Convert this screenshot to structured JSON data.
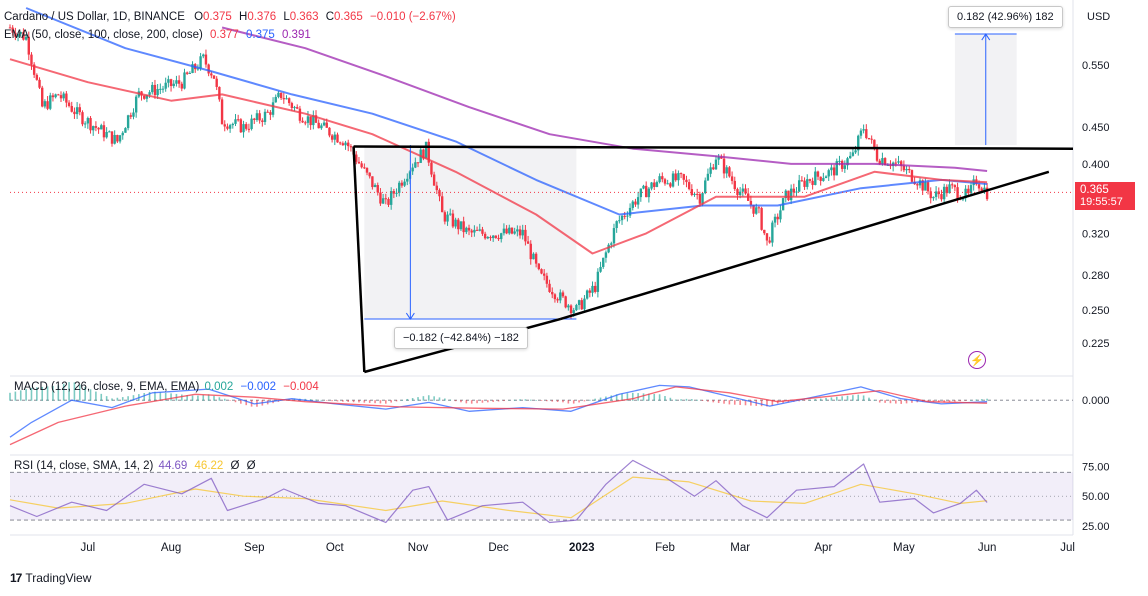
{
  "header": {
    "symbol": "Cardano / US Dollar, 1D, BINANCE",
    "o_label": "O",
    "o": "0.375",
    "h_label": "H",
    "h": "0.376",
    "l_label": "L",
    "l": "0.363",
    "c_label": "C",
    "c": "0.365",
    "change": "−0.010 (−2.67%)",
    "ema_label": "EMA (50, close, 100, close, 200, close)",
    "ema50": "0.377",
    "ema100": "0.375",
    "ema200": "0.391"
  },
  "currency": "USD",
  "last_price": {
    "value": "0.365",
    "countdown": "19:55:57"
  },
  "measure_up": "0.182 (42.96%) 182",
  "measure_down": "−0.182 (−42.84%) −182",
  "macd_panel": {
    "label": "MACD (12, 26, close, 9, EMA, EMA)",
    "hist": "0.002",
    "macd": "−0.002",
    "signal": "−0.004"
  },
  "rsi_panel": {
    "label": "RSI (14, close, SMA, 14, 2)",
    "rsi": "44.69",
    "sma": "46.22",
    "n1": "Ø",
    "n2": "Ø"
  },
  "brand": "TradingView",
  "colors": {
    "up": "#26a69a",
    "down": "#f23645",
    "ema50": "#f23645",
    "ema100": "#2962ff",
    "ema200": "#9c27b0",
    "rsi": "#7e57c2",
    "rsi_sma": "#f7c62f"
  },
  "chart_data": [
    {
      "type": "candlestick",
      "price_axis_ticks": [
        0.55,
        0.45,
        0.4,
        0.32,
        0.28,
        0.25,
        0.225
      ],
      "price_axis_labels": [
        "0.550",
        "0.450",
        "0.400",
        "0.320",
        "0.280",
        "0.250",
        "0.225"
      ],
      "scale": "log",
      "ylim": [
        0.205,
        0.66
      ],
      "x_ticks": [
        "Jul",
        "Aug",
        "Sep",
        "Oct",
        "Nov",
        "Dec",
        "2023",
        "Feb",
        "Mar",
        "Apr",
        "May",
        "Jun",
        "Jul"
      ],
      "x_tick_dates": [
        "2022-07-01",
        "2022-08-01",
        "2022-09-01",
        "2022-10-01",
        "2022-11-01",
        "2022-12-01",
        "2023-01-01",
        "2023-02-01",
        "2023-03-01",
        "2023-04-01",
        "2023-05-01",
        "2023-06-01",
        "2023-07-01"
      ],
      "xlim": [
        "2022-06-02",
        "2023-07-03"
      ],
      "close_path": [
        [
          "2022-06-02",
          0.62
        ],
        [
          "2022-06-08",
          0.6
        ],
        [
          "2022-06-14",
          0.48
        ],
        [
          "2022-06-20",
          0.5
        ],
        [
          "2022-06-27",
          0.47
        ],
        [
          "2022-07-04",
          0.45
        ],
        [
          "2022-07-12",
          0.43
        ],
        [
          "2022-07-20",
          0.5
        ],
        [
          "2022-07-28",
          0.51
        ],
        [
          "2022-08-05",
          0.52
        ],
        [
          "2022-08-13",
          0.56
        ],
        [
          "2022-08-17",
          0.53
        ],
        [
          "2022-08-20",
          0.46
        ],
        [
          "2022-08-28",
          0.45
        ],
        [
          "2022-09-06",
          0.47
        ],
        [
          "2022-09-11",
          0.5
        ],
        [
          "2022-09-18",
          0.47
        ],
        [
          "2022-09-26",
          0.45
        ],
        [
          "2022-10-05",
          0.43
        ],
        [
          "2022-10-12",
          0.39
        ],
        [
          "2022-10-20",
          0.35
        ],
        [
          "2022-10-30",
          0.4
        ],
        [
          "2022-11-04",
          0.42
        ],
        [
          "2022-11-10",
          0.34
        ],
        [
          "2022-11-20",
          0.32
        ],
        [
          "2022-11-30",
          0.32
        ],
        [
          "2022-12-10",
          0.32
        ],
        [
          "2022-12-16",
          0.28
        ],
        [
          "2022-12-24",
          0.26
        ],
        [
          "2022-12-30",
          0.25
        ],
        [
          "2023-01-06",
          0.27
        ],
        [
          "2023-01-14",
          0.33
        ],
        [
          "2023-01-22",
          0.36
        ],
        [
          "2023-01-30",
          0.38
        ],
        [
          "2023-02-07",
          0.38
        ],
        [
          "2023-02-14",
          0.36
        ],
        [
          "2023-02-20",
          0.41
        ],
        [
          "2023-02-28",
          0.37
        ],
        [
          "2023-03-08",
          0.34
        ],
        [
          "2023-03-11",
          0.31
        ],
        [
          "2023-03-18",
          0.36
        ],
        [
          "2023-03-26",
          0.38
        ],
        [
          "2023-04-04",
          0.39
        ],
        [
          "2023-04-12",
          0.41
        ],
        [
          "2023-04-16",
          0.45
        ],
        [
          "2023-04-21",
          0.41
        ],
        [
          "2023-04-28",
          0.4
        ],
        [
          "2023-05-06",
          0.38
        ],
        [
          "2023-05-12",
          0.36
        ],
        [
          "2023-05-18",
          0.37
        ],
        [
          "2023-05-25",
          0.36
        ],
        [
          "2023-05-28",
          0.38
        ],
        [
          "2023-06-01",
          0.365
        ]
      ],
      "ema50_path": [
        [
          "2022-06-02",
          0.56
        ],
        [
          "2022-07-01",
          0.52
        ],
        [
          "2022-08-01",
          0.49
        ],
        [
          "2022-08-20",
          0.5
        ],
        [
          "2022-09-20",
          0.47
        ],
        [
          "2022-10-15",
          0.44
        ],
        [
          "2022-11-15",
          0.39
        ],
        [
          "2022-12-15",
          0.34
        ],
        [
          "2023-01-05",
          0.3
        ],
        [
          "2023-01-25",
          0.32
        ],
        [
          "2023-02-20",
          0.36
        ],
        [
          "2023-03-25",
          0.36
        ],
        [
          "2023-04-20",
          0.39
        ],
        [
          "2023-05-15",
          0.38
        ],
        [
          "2023-06-01",
          0.377
        ]
      ],
      "ema100_path": [
        [
          "2022-06-08",
          0.66
        ],
        [
          "2022-07-15",
          0.58
        ],
        [
          "2022-08-15",
          0.54
        ],
        [
          "2022-09-15",
          0.5
        ],
        [
          "2022-10-15",
          0.47
        ],
        [
          "2022-11-15",
          0.43
        ],
        [
          "2022-12-15",
          0.38
        ],
        [
          "2023-01-15",
          0.34
        ],
        [
          "2023-02-15",
          0.35
        ],
        [
          "2023-03-15",
          0.35
        ],
        [
          "2023-04-15",
          0.37
        ],
        [
          "2023-05-15",
          0.38
        ],
        [
          "2023-06-01",
          0.375
        ]
      ],
      "ema200_path": [
        [
          "2022-08-20",
          0.62
        ],
        [
          "2022-09-20",
          0.58
        ],
        [
          "2022-10-20",
          0.53
        ],
        [
          "2022-11-20",
          0.48
        ],
        [
          "2022-12-20",
          0.44
        ],
        [
          "2023-01-20",
          0.42
        ],
        [
          "2023-02-20",
          0.41
        ],
        [
          "2023-03-20",
          0.4
        ],
        [
          "2023-04-20",
          0.4
        ],
        [
          "2023-05-20",
          0.395
        ],
        [
          "2023-06-01",
          0.391
        ]
      ],
      "last_price": 0.365,
      "annotations": {
        "resistance_line": [
          [
            "2022-10-08",
            0.423
          ],
          [
            "2023-07-03",
            0.42
          ]
        ],
        "support_line": [
          [
            "2022-12-24",
            0.243
          ],
          [
            "2023-06-24",
            0.39
          ]
        ],
        "triangle_left_edge": [
          [
            "2022-10-08",
            0.423
          ],
          [
            "2022-10-12",
            0.205
          ]
        ],
        "triangle_base": [
          [
            "2022-10-12",
            0.205
          ],
          [
            "2022-12-24",
            0.243
          ]
        ],
        "measure_down": {
          "from": [
            "2022-10-12",
            0.425
          ],
          "to": [
            "2022-12-30",
            0.243
          ],
          "label": "−0.182 (−42.84%) −182"
        },
        "measure_up": {
          "from": [
            "2023-05-20",
            0.425
          ],
          "to": [
            "2023-06-12",
            0.607
          ],
          "label": "0.182 (42.96%) 182"
        }
      }
    },
    {
      "type": "line",
      "name": "MACD (12, 26, close, 9, EMA, EMA)",
      "ylabel_ticks": [
        "0.000"
      ],
      "series": [
        {
          "name": "MACD",
          "values": [
            [
              "2022-06-02",
              -0.05
            ],
            [
              "2022-06-10",
              -0.03
            ],
            [
              "2022-06-25",
              0.0
            ],
            [
              "2022-07-10",
              -0.01
            ],
            [
              "2022-07-25",
              0.01
            ],
            [
              "2022-08-15",
              0.015
            ],
            [
              "2022-09-01",
              -0.005
            ],
            [
              "2022-09-15",
              0.002
            ],
            [
              "2022-10-01",
              -0.005
            ],
            [
              "2022-10-20",
              -0.012
            ],
            [
              "2022-11-05",
              -0.003
            ],
            [
              "2022-11-20",
              -0.015
            ],
            [
              "2022-12-10",
              -0.01
            ],
            [
              "2022-12-28",
              -0.015
            ],
            [
              "2023-01-15",
              0.008
            ],
            [
              "2023-01-30",
              0.02
            ],
            [
              "2023-02-10",
              0.018
            ],
            [
              "2023-02-25",
              0.005
            ],
            [
              "2023-03-12",
              -0.008
            ],
            [
              "2023-03-28",
              0.004
            ],
            [
              "2023-04-15",
              0.018
            ],
            [
              "2023-04-30",
              0.002
            ],
            [
              "2023-05-15",
              -0.005
            ],
            [
              "2023-06-01",
              -0.002
            ]
          ]
        },
        {
          "name": "Signal",
          "values": [
            [
              "2022-06-02",
              -0.06
            ],
            [
              "2022-06-20",
              -0.03
            ],
            [
              "2022-07-15",
              -0.008
            ],
            [
              "2022-08-10",
              0.008
            ],
            [
              "2022-09-01",
              0.004
            ],
            [
              "2022-09-20",
              -0.002
            ],
            [
              "2022-10-25",
              -0.009
            ],
            [
              "2022-11-25",
              -0.011
            ],
            [
              "2022-12-25",
              -0.012
            ],
            [
              "2023-01-20",
              0.002
            ],
            [
              "2023-02-05",
              0.018
            ],
            [
              "2023-02-25",
              0.01
            ],
            [
              "2023-03-15",
              -0.002
            ],
            [
              "2023-04-05",
              0.006
            ],
            [
              "2023-04-22",
              0.013
            ],
            [
              "2023-05-10",
              -0.002
            ],
            [
              "2023-06-01",
              -0.004
            ]
          ]
        }
      ]
    },
    {
      "type": "line",
      "name": "RSI (14, close, SMA, 14, 2)",
      "ylim": [
        20,
        82
      ],
      "y_ticks": [
        75,
        50,
        25
      ],
      "y_tick_labels": [
        "75.00",
        "50.00",
        "25.00"
      ],
      "bands": [
        30,
        70
      ],
      "series": [
        {
          "name": "RSI",
          "values": [
            [
              "2022-06-02",
              42
            ],
            [
              "2022-06-12",
              33
            ],
            [
              "2022-06-25",
              45
            ],
            [
              "2022-07-08",
              38
            ],
            [
              "2022-07-22",
              60
            ],
            [
              "2022-08-05",
              52
            ],
            [
              "2022-08-16",
              65
            ],
            [
              "2022-08-22",
              38
            ],
            [
              "2022-09-05",
              48
            ],
            [
              "2022-09-12",
              56
            ],
            [
              "2022-09-25",
              44
            ],
            [
              "2022-10-05",
              42
            ],
            [
              "2022-10-20",
              28
            ],
            [
              "2022-10-30",
              55
            ],
            [
              "2022-11-05",
              58
            ],
            [
              "2022-11-12",
              30
            ],
            [
              "2022-11-25",
              42
            ],
            [
              "2022-12-10",
              45
            ],
            [
              "2022-12-20",
              28
            ],
            [
              "2022-12-30",
              30
            ],
            [
              "2023-01-10",
              60
            ],
            [
              "2023-01-20",
              80
            ],
            [
              "2023-02-01",
              66
            ],
            [
              "2023-02-12",
              50
            ],
            [
              "2023-02-20",
              63
            ],
            [
              "2023-03-02",
              42
            ],
            [
              "2023-03-11",
              32
            ],
            [
              "2023-03-22",
              55
            ],
            [
              "2023-04-05",
              58
            ],
            [
              "2023-04-16",
              77
            ],
            [
              "2023-04-22",
              45
            ],
            [
              "2023-05-05",
              48
            ],
            [
              "2023-05-12",
              36
            ],
            [
              "2023-05-22",
              44
            ],
            [
              "2023-05-28",
              55
            ],
            [
              "2023-06-01",
              44.69
            ]
          ]
        },
        {
          "name": "SMA",
          "values": [
            [
              "2022-06-02",
              47
            ],
            [
              "2022-06-20",
              40
            ],
            [
              "2022-07-15",
              44
            ],
            [
              "2022-08-10",
              56
            ],
            [
              "2022-08-28",
              50
            ],
            [
              "2022-09-20",
              48
            ],
            [
              "2022-10-20",
              38
            ],
            [
              "2022-11-10",
              46
            ],
            [
              "2022-12-05",
              38
            ],
            [
              "2022-12-28",
              32
            ],
            [
              "2023-01-20",
              66
            ],
            [
              "2023-02-10",
              62
            ],
            [
              "2023-03-05",
              46
            ],
            [
              "2023-03-25",
              44
            ],
            [
              "2023-04-15",
              60
            ],
            [
              "2023-05-05",
              52
            ],
            [
              "2023-05-22",
              44
            ],
            [
              "2023-06-01",
              46.22
            ]
          ]
        }
      ]
    }
  ]
}
